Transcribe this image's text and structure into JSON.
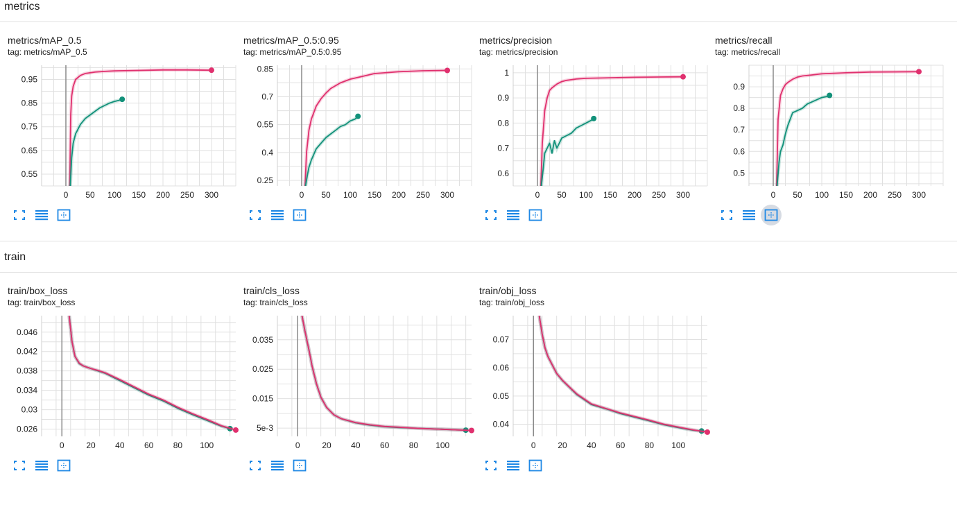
{
  "sections": [
    {
      "title": "metrics"
    },
    {
      "title": "train"
    }
  ],
  "colors": {
    "pink": "#e0306e",
    "teal": "#12917a",
    "grid": "#e0e0e0",
    "axis": "#8a8a8a",
    "icon": "#1e88e5"
  },
  "icons": [
    "fullscreen-icon",
    "toggle-log-icon",
    "fit-domain-icon"
  ],
  "chart_data": [
    {
      "type": "line",
      "title": "metrics/mAP_0.5",
      "tag": "tag: metrics/mAP_0.5",
      "xlim": [
        -50,
        350
      ],
      "ylim": [
        0.5,
        1.01
      ],
      "xticks": [
        0,
        50,
        100,
        150,
        200,
        250,
        300
      ],
      "yticks": [
        {
          "v": 0.55,
          "l": "0.55"
        },
        {
          "v": 0.65,
          "l": "0.65"
        },
        {
          "v": 0.75,
          "l": "0.75"
        },
        {
          "v": 0.85,
          "l": "0.85"
        },
        {
          "v": 0.95,
          "l": "0.95"
        }
      ],
      "active_fit": false,
      "series": [
        {
          "color": "pink",
          "x": [
            8,
            10,
            12,
            15,
            20,
            30,
            40,
            60,
            80,
            100,
            150,
            200,
            250,
            300
          ],
          "y": [
            0.5,
            0.8,
            0.88,
            0.92,
            0.95,
            0.967,
            0.975,
            0.981,
            0.984,
            0.986,
            0.988,
            0.99,
            0.99,
            0.989
          ]
        },
        {
          "color": "teal",
          "x": [
            9,
            12,
            15,
            20,
            30,
            40,
            50,
            60,
            70,
            80,
            90,
            100,
            110,
            116
          ],
          "y": [
            0.5,
            0.62,
            0.68,
            0.72,
            0.76,
            0.785,
            0.8,
            0.815,
            0.83,
            0.84,
            0.85,
            0.857,
            0.862,
            0.866
          ]
        }
      ]
    },
    {
      "type": "line",
      "title": "metrics/mAP_0.5:0.95",
      "tag": "tag: metrics/mAP_0.5:0.95",
      "xlim": [
        -50,
        350
      ],
      "ylim": [
        0.22,
        0.87
      ],
      "xticks": [
        0,
        50,
        100,
        150,
        200,
        250,
        300
      ],
      "yticks": [
        {
          "v": 0.25,
          "l": "0.25"
        },
        {
          "v": 0.4,
          "l": "0.4"
        },
        {
          "v": 0.55,
          "l": "0.55"
        },
        {
          "v": 0.7,
          "l": "0.7"
        },
        {
          "v": 0.85,
          "l": "0.85"
        }
      ],
      "active_fit": false,
      "series": [
        {
          "color": "pink",
          "x": [
            7,
            10,
            15,
            20,
            30,
            40,
            50,
            60,
            80,
            100,
            125,
            150,
            200,
            250,
            300
          ],
          "y": [
            0.22,
            0.4,
            0.52,
            0.58,
            0.65,
            0.69,
            0.72,
            0.745,
            0.775,
            0.795,
            0.81,
            0.825,
            0.835,
            0.84,
            0.842
          ]
        },
        {
          "color": "teal",
          "x": [
            8,
            12,
            15,
            20,
            30,
            40,
            50,
            60,
            70,
            80,
            90,
            100,
            110,
            116
          ],
          "y": [
            0.22,
            0.28,
            0.32,
            0.36,
            0.42,
            0.45,
            0.48,
            0.5,
            0.52,
            0.54,
            0.55,
            0.57,
            0.58,
            0.595
          ]
        }
      ]
    },
    {
      "type": "line",
      "title": "metrics/precision",
      "tag": "tag: metrics/precision",
      "xlim": [
        -50,
        350
      ],
      "ylim": [
        0.55,
        1.03
      ],
      "xticks": [
        0,
        50,
        100,
        150,
        200,
        250,
        300
      ],
      "yticks": [
        {
          "v": 0.6,
          "l": "0.6"
        },
        {
          "v": 0.7,
          "l": "0.7"
        },
        {
          "v": 0.8,
          "l": "0.8"
        },
        {
          "v": 0.9,
          "l": "0.9"
        },
        {
          "v": 1,
          "l": "1"
        }
      ],
      "active_fit": false,
      "series": [
        {
          "color": "pink",
          "x": [
            7,
            10,
            15,
            20,
            25,
            30,
            40,
            50,
            60,
            80,
            100,
            150,
            200,
            250,
            300
          ],
          "y": [
            0.55,
            0.72,
            0.85,
            0.9,
            0.93,
            0.94,
            0.955,
            0.965,
            0.97,
            0.975,
            0.978,
            0.98,
            0.982,
            0.983,
            0.984
          ]
        },
        {
          "color": "teal",
          "x": [
            8,
            12,
            15,
            20,
            25,
            30,
            35,
            40,
            45,
            50,
            60,
            70,
            80,
            90,
            100,
            110,
            116
          ],
          "y": [
            0.55,
            0.62,
            0.68,
            0.7,
            0.72,
            0.68,
            0.73,
            0.7,
            0.72,
            0.74,
            0.75,
            0.76,
            0.78,
            0.79,
            0.8,
            0.81,
            0.818
          ]
        }
      ]
    },
    {
      "type": "line",
      "title": "metrics/recall",
      "tag": "tag: metrics/recall",
      "xlim": [
        -50,
        350
      ],
      "ylim": [
        0.44,
        1.0
      ],
      "xticks": [
        0,
        50,
        100,
        150,
        200,
        250,
        300
      ],
      "yticks": [
        {
          "v": 0.5,
          "l": "0.5"
        },
        {
          "v": 0.6,
          "l": "0.6"
        },
        {
          "v": 0.7,
          "l": "0.7"
        },
        {
          "v": 0.8,
          "l": "0.8"
        },
        {
          "v": 0.9,
          "l": "0.9"
        }
      ],
      "active_fit": true,
      "series": [
        {
          "color": "pink",
          "x": [
            7,
            10,
            15,
            20,
            25,
            30,
            40,
            50,
            60,
            80,
            100,
            150,
            200,
            250,
            300
          ],
          "y": [
            0.44,
            0.75,
            0.86,
            0.89,
            0.91,
            0.92,
            0.935,
            0.945,
            0.95,
            0.955,
            0.96,
            0.965,
            0.968,
            0.969,
            0.97
          ]
        },
        {
          "color": "teal",
          "x": [
            8,
            12,
            15,
            20,
            25,
            30,
            35,
            40,
            50,
            60,
            70,
            80,
            90,
            100,
            110,
            116
          ],
          "y": [
            0.44,
            0.55,
            0.6,
            0.63,
            0.68,
            0.72,
            0.75,
            0.78,
            0.79,
            0.8,
            0.82,
            0.83,
            0.84,
            0.85,
            0.855,
            0.86
          ]
        }
      ]
    },
    {
      "type": "line",
      "title": "train/box_loss",
      "tag": "tag: train/box_loss",
      "xlim": [
        -14,
        120
      ],
      "ylim": [
        0.0245,
        0.0494
      ],
      "xticks": [
        0,
        20,
        40,
        60,
        80,
        100
      ],
      "yticks": [
        {
          "v": 0.026,
          "l": "0.026"
        },
        {
          "v": 0.03,
          "l": "0.03"
        },
        {
          "v": 0.034,
          "l": "0.034"
        },
        {
          "v": 0.038,
          "l": "0.038"
        },
        {
          "v": 0.042,
          "l": "0.042"
        },
        {
          "v": 0.046,
          "l": "0.046"
        }
      ],
      "active_fit": false,
      "series": [
        {
          "color": "teal",
          "x": [
            5,
            7,
            9,
            12,
            15,
            20,
            25,
            30,
            40,
            50,
            60,
            70,
            80,
            90,
            100,
            110,
            116
          ],
          "y": [
            0.0494,
            0.044,
            0.041,
            0.0395,
            0.039,
            0.0385,
            0.038,
            0.0375,
            0.036,
            0.0345,
            0.033,
            0.0318,
            0.0303,
            0.029,
            0.0278,
            0.0266,
            0.0261
          ]
        },
        {
          "color": "pink",
          "x": [
            5,
            7,
            9,
            12,
            15,
            20,
            25,
            30,
            40,
            50,
            60,
            70,
            80,
            90,
            100,
            110,
            120
          ],
          "y": [
            0.0494,
            0.044,
            0.041,
            0.0396,
            0.039,
            0.0385,
            0.0381,
            0.0376,
            0.0362,
            0.0347,
            0.0332,
            0.032,
            0.0305,
            0.0292,
            0.028,
            0.0267,
            0.0258
          ]
        }
      ]
    },
    {
      "type": "line",
      "title": "train/cls_loss",
      "tag": "tag: train/cls_loss",
      "xlim": [
        -14,
        120
      ],
      "ylim": [
        0.0022,
        0.0432
      ],
      "xticks": [
        0,
        20,
        40,
        60,
        80,
        100
      ],
      "yticks": [
        {
          "v": 0.005,
          "l": "5e-3"
        },
        {
          "v": 0.015,
          "l": "0.015"
        },
        {
          "v": 0.025,
          "l": "0.025"
        },
        {
          "v": 0.035,
          "l": "0.035"
        }
      ],
      "active_fit": false,
      "series": [
        {
          "color": "teal",
          "x": [
            3,
            5,
            8,
            10,
            13,
            16,
            20,
            25,
            30,
            40,
            50,
            60,
            70,
            80,
            90,
            100,
            110,
            116
          ],
          "y": [
            0.0432,
            0.038,
            0.031,
            0.026,
            0.02,
            0.0155,
            0.012,
            0.0095,
            0.0082,
            0.0068,
            0.006,
            0.0055,
            0.0052,
            0.005,
            0.0048,
            0.0046,
            0.0044,
            0.0043
          ]
        },
        {
          "color": "pink",
          "x": [
            3,
            5,
            8,
            10,
            13,
            16,
            20,
            25,
            30,
            40,
            50,
            60,
            70,
            80,
            90,
            100,
            110,
            120
          ],
          "y": [
            0.0432,
            0.038,
            0.031,
            0.026,
            0.02,
            0.0155,
            0.012,
            0.0095,
            0.0082,
            0.0069,
            0.0061,
            0.0056,
            0.0053,
            0.005,
            0.0048,
            0.0046,
            0.0044,
            0.0042
          ]
        }
      ]
    },
    {
      "type": "line",
      "title": "train/obj_loss",
      "tag": "tag: train/obj_loss",
      "xlim": [
        -14,
        120
      ],
      "ylim": [
        0.0357,
        0.0785
      ],
      "xticks": [
        0,
        20,
        40,
        60,
        80,
        100
      ],
      "yticks": [
        {
          "v": 0.04,
          "l": "0.04"
        },
        {
          "v": 0.05,
          "l": "0.05"
        },
        {
          "v": 0.06,
          "l": "0.06"
        },
        {
          "v": 0.07,
          "l": "0.07"
        }
      ],
      "active_fit": false,
      "series": [
        {
          "color": "teal",
          "x": [
            4,
            6,
            8,
            10,
            13,
            16,
            20,
            25,
            30,
            40,
            50,
            60,
            70,
            80,
            90,
            100,
            110,
            116
          ],
          "y": [
            0.0785,
            0.072,
            0.067,
            0.064,
            0.061,
            0.058,
            0.0555,
            0.053,
            0.0505,
            0.047,
            0.0455,
            0.0438,
            0.0425,
            0.0412,
            0.0398,
            0.0388,
            0.0379,
            0.0376
          ]
        },
        {
          "color": "pink",
          "x": [
            4,
            6,
            8,
            10,
            13,
            16,
            20,
            25,
            30,
            40,
            50,
            60,
            70,
            80,
            90,
            100,
            110,
            120
          ],
          "y": [
            0.0785,
            0.072,
            0.067,
            0.064,
            0.061,
            0.058,
            0.0556,
            0.0531,
            0.0507,
            0.0472,
            0.0456,
            0.044,
            0.0427,
            0.0414,
            0.04,
            0.039,
            0.038,
            0.0372
          ]
        }
      ]
    }
  ]
}
